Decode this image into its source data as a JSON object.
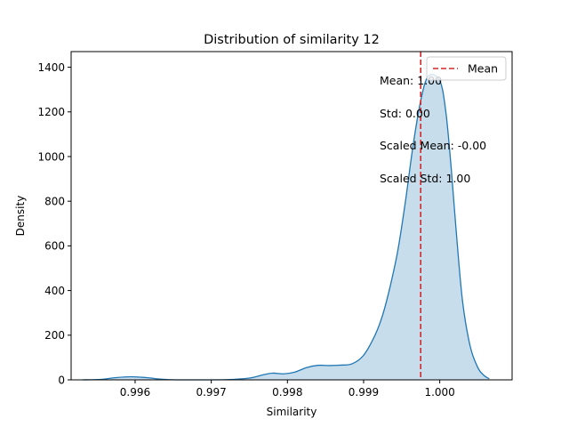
{
  "chart_data": {
    "type": "area",
    "title": "Distribution of similarity 12",
    "xlabel": "Similarity",
    "ylabel": "Density",
    "xlim": [
      0.99516,
      1.00095
    ],
    "ylim": [
      0,
      1470
    ],
    "xticks": [
      0.996,
      0.997,
      0.998,
      0.999,
      1.0
    ],
    "xtick_labels": [
      "0.996",
      "0.997",
      "0.998",
      "0.999",
      "1.000"
    ],
    "yticks": [
      0,
      200,
      400,
      600,
      800,
      1000,
      1200,
      1400
    ],
    "ytick_labels": [
      "0",
      "200",
      "400",
      "600",
      "800",
      "1000",
      "1200",
      "1400"
    ],
    "grid": false,
    "legend_position": "top-right",
    "series": [
      {
        "name": "",
        "color": "#1f77b4",
        "fill": "#1f77b4",
        "fill_opacity": 0.25,
        "x": [
          0.99531,
          0.99555,
          0.99575,
          0.99595,
          0.99615,
          0.99635,
          0.99655,
          0.9968,
          0.9972,
          0.9975,
          0.99765,
          0.9978,
          0.99795,
          0.9981,
          0.99825,
          0.9984,
          0.99855,
          0.9987,
          0.99885,
          0.999,
          0.99915,
          0.99925,
          0.99935,
          0.99945,
          0.99955,
          0.99965,
          0.99975,
          0.99985,
          1.0,
          1.00008,
          1.00015,
          1.00022,
          1.0003,
          1.0004,
          1.0005,
          1.00058,
          1.00065
        ],
        "y": [
          0,
          2,
          10,
          14,
          10,
          3,
          0,
          0,
          1,
          8,
          20,
          30,
          27,
          35,
          55,
          65,
          64,
          66,
          72,
          110,
          200,
          290,
          420,
          580,
          800,
          1050,
          1250,
          1360,
          1340,
          1200,
          950,
          650,
          350,
          150,
          55,
          20,
          5
        ]
      }
    ],
    "mean_line": {
      "x": 0.99975,
      "color": "#d62728",
      "style": "dashed",
      "legend_label": "Mean"
    },
    "annotations": [
      "Mean: 1.00",
      "Std: 0.00",
      "Scaled Mean: -0.00",
      "Scaled Std: 1.00"
    ]
  }
}
